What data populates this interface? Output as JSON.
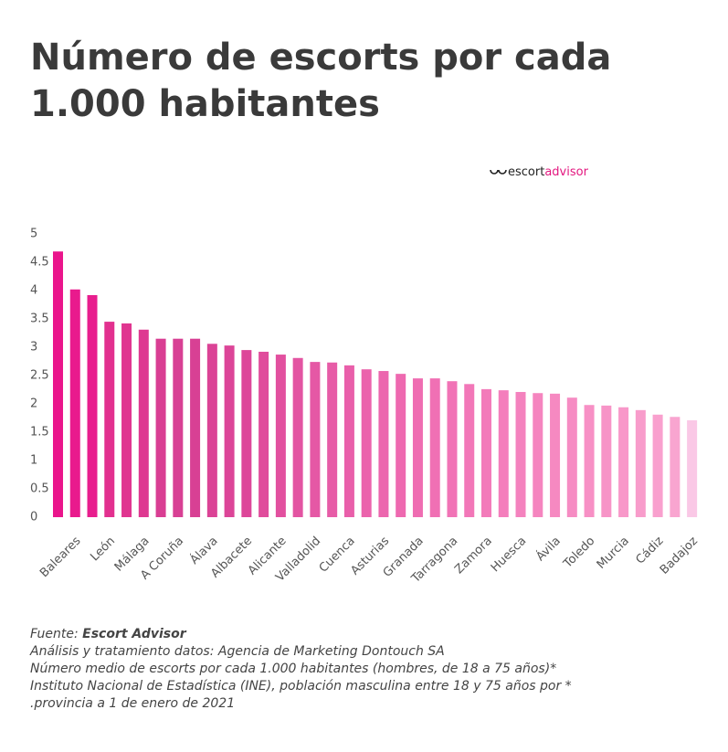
{
  "chart_data": {
    "type": "bar",
    "title": [
      "Número de escorts por cada",
      "1.000 habitantes"
    ],
    "logo": {
      "part1": "escort",
      "part2": "advisor"
    },
    "categories": [
      null,
      "Baleares",
      null,
      "León",
      null,
      "Málaga",
      null,
      "A Coruña",
      null,
      "Álava",
      null,
      "Albacete",
      null,
      "Alicante",
      null,
      "Valladolid",
      null,
      "Cuenca",
      null,
      "Asturias",
      null,
      "Granada",
      null,
      "Tarragona",
      null,
      "Zamora",
      null,
      "Huesca",
      null,
      "Ávila",
      null,
      "Toledo",
      null,
      "Murcia",
      null,
      "Cádiz",
      null,
      "Badajoz"
    ],
    "values": [
      4.69,
      4.02,
      3.92,
      3.45,
      3.42,
      3.31,
      3.15,
      3.15,
      3.15,
      3.06,
      3.03,
      2.95,
      2.92,
      2.87,
      2.81,
      2.74,
      2.73,
      2.68,
      2.61,
      2.58,
      2.53,
      2.45,
      2.45,
      2.4,
      2.35,
      2.26,
      2.24,
      2.21,
      2.19,
      2.18,
      2.11,
      1.98,
      1.97,
      1.94,
      1.89,
      1.81,
      1.77,
      1.71
    ],
    "colors": [
      "#ea158c",
      "#e91a8d",
      "#e81e8e",
      "#e2308f",
      "#e03590",
      "#de3991",
      "#d93e93",
      "#d84094",
      "#d84094",
      "#db4396",
      "#dc4598",
      "#dd4699",
      "#e04c9c",
      "#e2509f",
      "#e354a2",
      "#e558a5",
      "#e75ca7",
      "#e95faa",
      "#eb63ac",
      "#ec66ae",
      "#ee69b0",
      "#ef6db2",
      "#f070b4",
      "#f173b6",
      "#f277b8",
      "#f37bba",
      "#f47ebc",
      "#f482be",
      "#f585bf",
      "#f689c1",
      "#f68cc3",
      "#f790c5",
      "#f794c7",
      "#f898c9",
      "#f89ccb",
      "#f9a0ce",
      "#f9a5d0",
      "#fac8e6"
    ],
    "ylim": [
      0,
      5
    ],
    "yticks": [
      0,
      0.5,
      1,
      1.5,
      2,
      2.5,
      3,
      3.5,
      4,
      4.5,
      5
    ],
    "grid": false,
    "footer": {
      "source_label": "Fuente: ",
      "source": "Escort Advisor",
      "lines": [
        "Análisis y tratamiento datos: Agencia de Marketing Dontouch SA",
        "Número medio de escorts por cada 1.000 habitantes (hombres, de 18 a 75 años)*",
        "Instituto Nacional de Estadística (INE), población masculina entre 18 y 75 años por *",
        ".provincia a 1 de enero de 2021"
      ]
    }
  }
}
